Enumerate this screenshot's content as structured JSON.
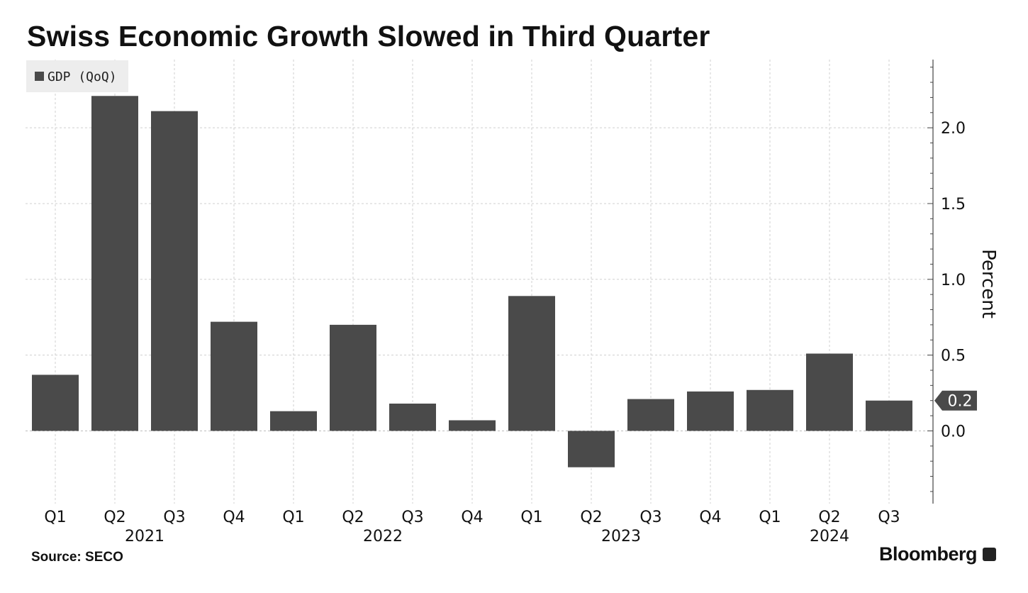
{
  "header": {
    "title": "Swiss Economic Growth Slowed in Third Quarter"
  },
  "footer": {
    "source": "Source: SECO",
    "brand": "Bloomberg"
  },
  "chart_data": {
    "type": "bar",
    "legend": {
      "label": "GDP (QoQ)",
      "placement": "top-left"
    },
    "categories": [
      "Q1",
      "Q2",
      "Q3",
      "Q4",
      "Q1",
      "Q2",
      "Q3",
      "Q4",
      "Q1",
      "Q2",
      "Q3",
      "Q4",
      "Q1",
      "Q2",
      "Q3"
    ],
    "year_labels": [
      "2021",
      "2022",
      "2023",
      "2024"
    ],
    "series": [
      {
        "name": "GDP (QoQ)",
        "color": "#4a4a4a",
        "values": [
          0.37,
          2.21,
          2.11,
          0.72,
          0.13,
          0.7,
          0.18,
          0.07,
          0.89,
          -0.24,
          0.21,
          0.26,
          0.27,
          0.51,
          0.2
        ]
      }
    ],
    "ylabel": "Percent",
    "ylim": [
      -0.48,
      2.45
    ],
    "yticks": [
      0.0,
      0.5,
      1.0,
      1.5,
      2.0
    ],
    "ytick_labels": [
      "0.0",
      "0.5",
      "1.0",
      "1.5",
      "2.0"
    ],
    "y_axis_position": "right",
    "last_value_label": "0.2",
    "grid": true
  }
}
